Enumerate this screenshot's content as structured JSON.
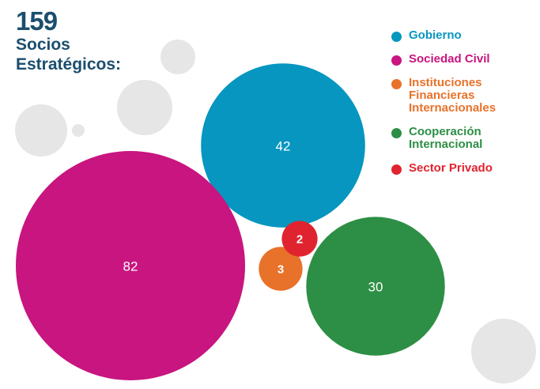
{
  "header": {
    "total": "159",
    "line1": "Socios",
    "line2": "Estratégicos:"
  },
  "chart_data": {
    "type": "bubble",
    "title": "159 Socios Estratégicos:",
    "total": 159,
    "series": [
      {
        "name": "Gobierno",
        "value": 42,
        "color": "#0796c0"
      },
      {
        "name": "Sociedad Civil",
        "value": 82,
        "color": "#c8157f"
      },
      {
        "name": "Instituciones Financieras Internacionales",
        "value": 3,
        "color": "#e8722a"
      },
      {
        "name": "Cooperación Internacional",
        "value": 30,
        "color": "#2d8f45"
      },
      {
        "name": "Sector Privado",
        "value": 2,
        "color": "#e0242f"
      }
    ],
    "decorative_color": "#e6e6e6",
    "legend_position": "top-right"
  }
}
